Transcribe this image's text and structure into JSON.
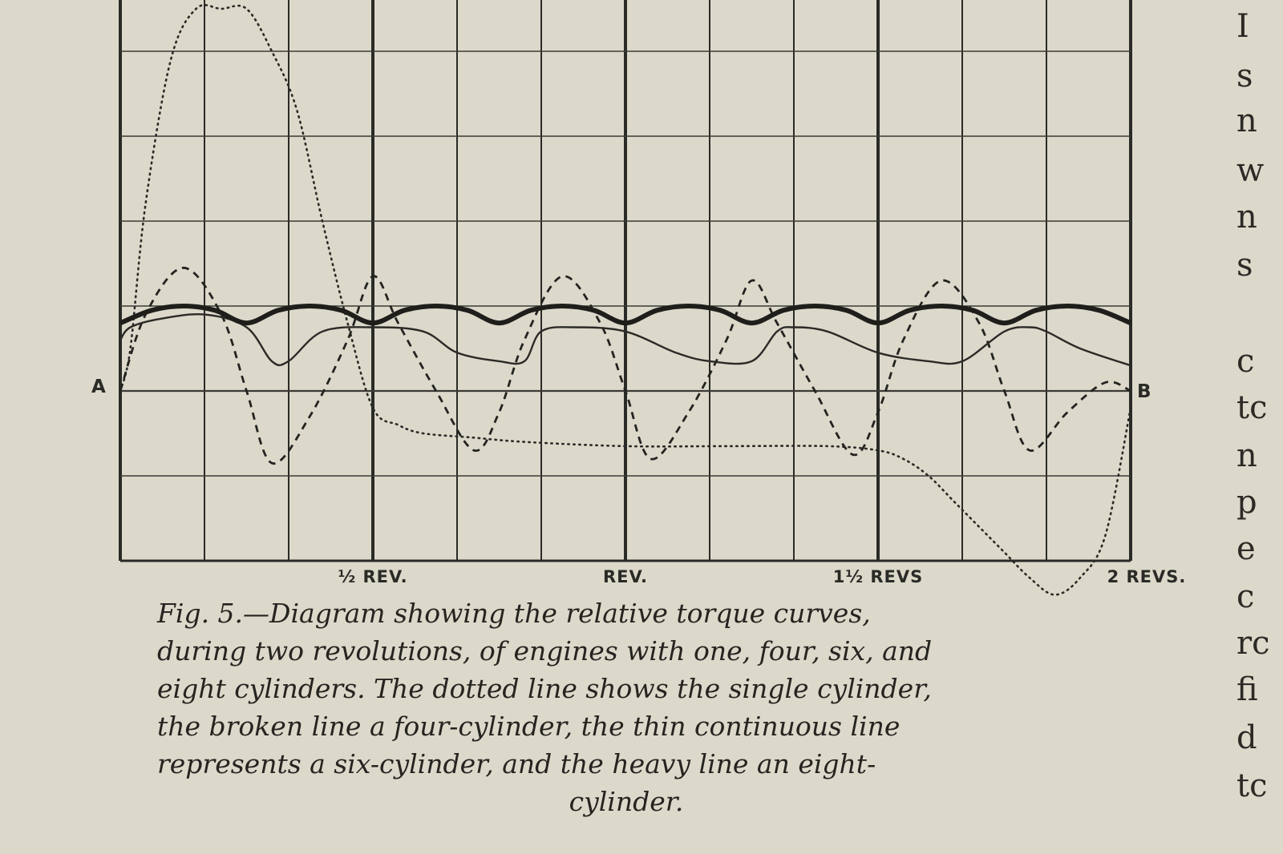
{
  "chart_data": {
    "type": "line",
    "x_unit": "revolutions",
    "xlim": [
      0,
      2
    ],
    "x_ticks": [
      {
        "x": 0.5,
        "label": "½ REV."
      },
      {
        "x": 1.0,
        "label": "REV."
      },
      {
        "x": 1.5,
        "label": "1½ REVS"
      },
      {
        "x": 2.0,
        "label": "2 REVS."
      }
    ],
    "endpoint_labels": {
      "start": "A",
      "end": "B"
    },
    "grid": true,
    "series": [
      {
        "style": "dotted",
        "cylinders": 1,
        "x": [
          0,
          0.02,
          0.05,
          0.1,
          0.15,
          0.2,
          0.25,
          0.3,
          0.35,
          0.4,
          0.45,
          0.5,
          0.55,
          0.6,
          0.7,
          0.8,
          1.0,
          1.2,
          1.4,
          1.5,
          1.55,
          1.6,
          1.65,
          1.7,
          1.75,
          1.8,
          1.85,
          1.9,
          1.95,
          2.0
        ],
        "y": [
          0,
          0.5,
          2.2,
          3.9,
          4.5,
          4.5,
          4.5,
          4.0,
          3.3,
          2.0,
          0.8,
          -0.2,
          -0.4,
          -0.5,
          -0.55,
          -0.6,
          -0.65,
          -0.65,
          -0.65,
          -0.7,
          -0.8,
          -1.0,
          -1.3,
          -1.6,
          -1.9,
          -2.2,
          -2.4,
          -2.2,
          -1.7,
          -0.2
        ]
      },
      {
        "style": "broken",
        "cylinders": 4,
        "x": [
          0,
          0.05,
          0.125,
          0.2,
          0.25,
          0.3,
          0.375,
          0.45,
          0.5,
          0.55,
          0.625,
          0.7,
          0.75,
          0.8,
          0.875,
          0.95,
          1.0,
          1.05,
          1.125,
          1.2,
          1.25,
          1.3,
          1.375,
          1.45,
          1.5,
          1.55,
          1.625,
          1.7,
          1.75,
          1.8,
          1.875,
          1.95,
          2.0
        ],
        "y": [
          0,
          0.9,
          1.45,
          0.9,
          0,
          -0.85,
          -0.3,
          0.6,
          1.35,
          0.8,
          0,
          -0.7,
          -0.25,
          0.6,
          1.35,
          0.8,
          0,
          -0.8,
          -0.25,
          0.6,
          1.3,
          0.8,
          0,
          -0.75,
          -0.25,
          0.6,
          1.3,
          0.8,
          0,
          -0.7,
          -0.25,
          0.1,
          0
        ]
      },
      {
        "style": "thin",
        "cylinders": 6,
        "x": [
          0,
          0.02,
          0.08,
          0.167,
          0.25,
          0.3,
          0.333,
          0.4,
          0.5,
          0.6,
          0.667,
          0.75,
          0.8,
          0.833,
          0.9,
          1.0,
          1.1,
          1.167,
          1.25,
          1.3,
          1.333,
          1.4,
          1.5,
          1.6,
          1.667,
          1.75,
          1.8,
          1.833,
          1.9,
          2.0
        ],
        "y": [
          0.6,
          0.75,
          0.85,
          0.9,
          0.75,
          0.35,
          0.35,
          0.7,
          0.75,
          0.7,
          0.45,
          0.35,
          0.35,
          0.7,
          0.75,
          0.7,
          0.45,
          0.35,
          0.35,
          0.7,
          0.75,
          0.7,
          0.45,
          0.35,
          0.35,
          0.7,
          0.75,
          0.7,
          0.5,
          0.3
        ]
      },
      {
        "style": "heavy",
        "cylinders": 8,
        "x": [
          0,
          0.0625,
          0.125,
          0.1875,
          0.25,
          0.3125,
          0.375,
          0.4375,
          0.5,
          0.5625,
          0.625,
          0.6875,
          0.75,
          0.8125,
          0.875,
          0.9375,
          1.0,
          1.0625,
          1.125,
          1.1875,
          1.25,
          1.3125,
          1.375,
          1.4375,
          1.5,
          1.5625,
          1.625,
          1.6875,
          1.75,
          1.8125,
          1.875,
          1.9375,
          2.0
        ],
        "y": [
          0.8,
          0.95,
          1.0,
          0.95,
          0.8,
          0.95,
          1.0,
          0.95,
          0.8,
          0.95,
          1.0,
          0.95,
          0.8,
          0.95,
          1.0,
          0.95,
          0.8,
          0.95,
          1.0,
          0.95,
          0.8,
          0.95,
          1.0,
          0.95,
          0.8,
          0.95,
          1.0,
          0.95,
          0.8,
          0.95,
          1.0,
          0.95,
          0.8
        ]
      }
    ]
  },
  "caption": {
    "lines": [
      "Fig. 5.—Diagram showing the relative torque curves,",
      "during two revolutions, of engines with one, four, six, and",
      "eight cylinders. The dotted line shows the single cylinder,",
      "the broken line a four-cylinder, the thin continuous line",
      "represents a six-cylinder, and the heavy line an eight-",
      "cylinder."
    ]
  },
  "margin_letters": [
    "I",
    "s",
    "n",
    "w",
    "n",
    "s",
    "c",
    "tc",
    "n",
    "p",
    "e",
    "c",
    "rc",
    "fi",
    "d",
    "tc"
  ]
}
